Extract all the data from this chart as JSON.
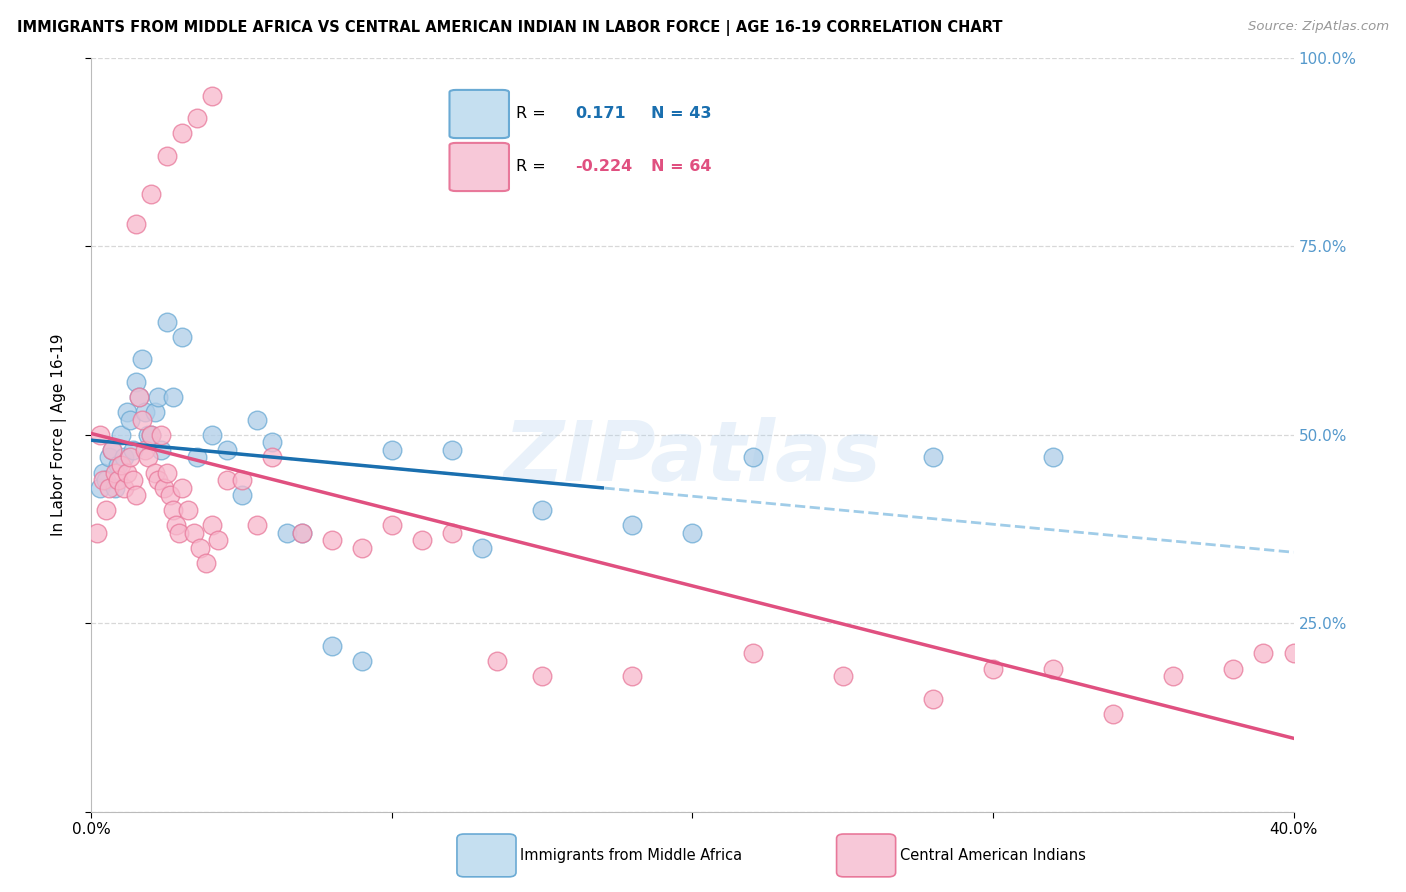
{
  "title": "IMMIGRANTS FROM MIDDLE AFRICA VS CENTRAL AMERICAN INDIAN IN LABOR FORCE | AGE 16-19 CORRELATION CHART",
  "source": "Source: ZipAtlas.com",
  "ylabel": "In Labor Force | Age 16-19",
  "xlim": [
    0.0,
    40.0
  ],
  "ylim": [
    0.0,
    100.0
  ],
  "ytick_vals": [
    0,
    25,
    50,
    75,
    100
  ],
  "ytick_right_labels": [
    "",
    "25.0%",
    "50.0%",
    "75.0%",
    "100.0%"
  ],
  "xtick_vals": [
    0,
    10,
    20,
    30,
    40
  ],
  "xtick_labels": [
    "0.0%",
    "",
    "",
    "",
    "40.0%"
  ],
  "watermark": "ZIPatlas",
  "blue_fill": "#aecde8",
  "blue_edge": "#6aaad4",
  "blue_line": "#1a6faf",
  "blue_dash": "#90c4e4",
  "pink_fill": "#f7b8cc",
  "pink_edge": "#e8789a",
  "pink_line": "#e05080",
  "right_axis_color": "#5599cc",
  "legend_blue_R": "0.171",
  "legend_blue_N": "43",
  "legend_pink_R": "-0.224",
  "legend_pink_N": "64",
  "legend_text_blue": "#1a6faf",
  "legend_text_pink": "#e05080",
  "grid_color": "#d8d8d8",
  "blue_x": [
    0.3,
    0.4,
    0.5,
    0.6,
    0.7,
    0.8,
    0.9,
    1.0,
    1.1,
    1.2,
    1.3,
    1.4,
    1.5,
    1.6,
    1.7,
    1.8,
    1.9,
    2.0,
    2.1,
    2.2,
    2.3,
    2.5,
    2.7,
    3.0,
    3.5,
    4.0,
    4.5,
    5.0,
    5.5,
    6.0,
    6.5,
    7.0,
    8.0,
    9.0,
    10.0,
    12.0,
    13.0,
    15.0,
    18.0,
    20.0,
    22.0,
    28.0,
    32.0
  ],
  "blue_y": [
    43.0,
    45.0,
    44.0,
    47.0,
    48.0,
    43.0,
    46.0,
    50.0,
    47.0,
    53.0,
    52.0,
    48.0,
    57.0,
    55.0,
    60.0,
    53.0,
    50.0,
    50.0,
    53.0,
    55.0,
    48.0,
    65.0,
    55.0,
    63.0,
    47.0,
    50.0,
    48.0,
    42.0,
    52.0,
    49.0,
    37.0,
    37.0,
    22.0,
    20.0,
    48.0,
    48.0,
    35.0,
    40.0,
    38.0,
    37.0,
    47.0,
    47.0,
    47.0
  ],
  "pink_x": [
    0.2,
    0.3,
    0.4,
    0.5,
    0.6,
    0.7,
    0.8,
    0.9,
    1.0,
    1.1,
    1.2,
    1.3,
    1.4,
    1.5,
    1.6,
    1.7,
    1.8,
    1.9,
    2.0,
    2.1,
    2.2,
    2.3,
    2.4,
    2.5,
    2.6,
    2.7,
    2.8,
    2.9,
    3.0,
    3.2,
    3.4,
    3.6,
    3.8,
    4.0,
    4.2,
    4.5,
    5.0,
    5.5,
    6.0,
    7.0,
    8.0,
    9.0,
    10.0,
    11.0,
    12.0,
    13.5,
    15.0,
    18.0,
    22.0,
    25.0,
    28.0,
    30.0,
    32.0,
    34.0,
    36.0,
    38.0,
    39.0,
    40.0,
    1.5,
    2.0,
    2.5,
    3.0,
    3.5,
    4.0
  ],
  "pink_y": [
    37.0,
    50.0,
    44.0,
    40.0,
    43.0,
    48.0,
    45.0,
    44.0,
    46.0,
    43.0,
    45.0,
    47.0,
    44.0,
    42.0,
    55.0,
    52.0,
    48.0,
    47.0,
    50.0,
    45.0,
    44.0,
    50.0,
    43.0,
    45.0,
    42.0,
    40.0,
    38.0,
    37.0,
    43.0,
    40.0,
    37.0,
    35.0,
    33.0,
    38.0,
    36.0,
    44.0,
    44.0,
    38.0,
    47.0,
    37.0,
    36.0,
    35.0,
    38.0,
    36.0,
    37.0,
    20.0,
    18.0,
    18.0,
    21.0,
    18.0,
    15.0,
    19.0,
    19.0,
    13.0,
    18.0,
    19.0,
    21.0,
    21.0,
    78.0,
    82.0,
    87.0,
    90.0,
    92.0,
    95.0
  ],
  "background_color": "#ffffff"
}
